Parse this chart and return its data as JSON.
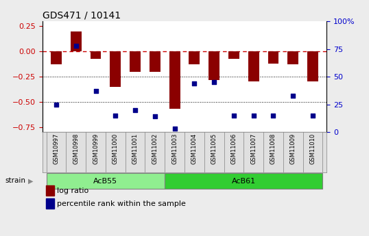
{
  "title": "GDS471 / 10141",
  "samples": [
    "GSM10997",
    "GSM10998",
    "GSM10999",
    "GSM11000",
    "GSM11001",
    "GSM11002",
    "GSM11003",
    "GSM11004",
    "GSM11005",
    "GSM11006",
    "GSM11007",
    "GSM11008",
    "GSM11009",
    "GSM11010"
  ],
  "log_ratio": [
    -0.13,
    0.2,
    -0.07,
    -0.35,
    -0.2,
    -0.2,
    -0.57,
    -0.13,
    -0.28,
    -0.07,
    -0.3,
    -0.12,
    -0.13,
    -0.3
  ],
  "percentile": [
    25,
    78,
    37,
    15,
    20,
    14,
    3,
    44,
    45,
    15,
    15,
    15,
    33,
    15
  ],
  "bar_color": "#8B0000",
  "dot_color": "#00008B",
  "ref_line_color": "#CC0000",
  "ylim_left": [
    -0.8,
    0.3
  ],
  "ylim_right": [
    0,
    100
  ],
  "yticks_left": [
    0.25,
    0.0,
    -0.25,
    -0.5,
    -0.75
  ],
  "yticks_right": [
    100,
    75,
    50,
    25,
    0
  ],
  "group1_label": "AcB55",
  "group1_count": 6,
  "group2_label": "AcB61",
  "group2_count": 8,
  "strain_label": "strain",
  "legend_bar": "log ratio",
  "legend_dot": "percentile rank within the sample",
  "group1_color": "#90EE90",
  "group2_color": "#32CD32",
  "fig_bg": "#ECECEC"
}
